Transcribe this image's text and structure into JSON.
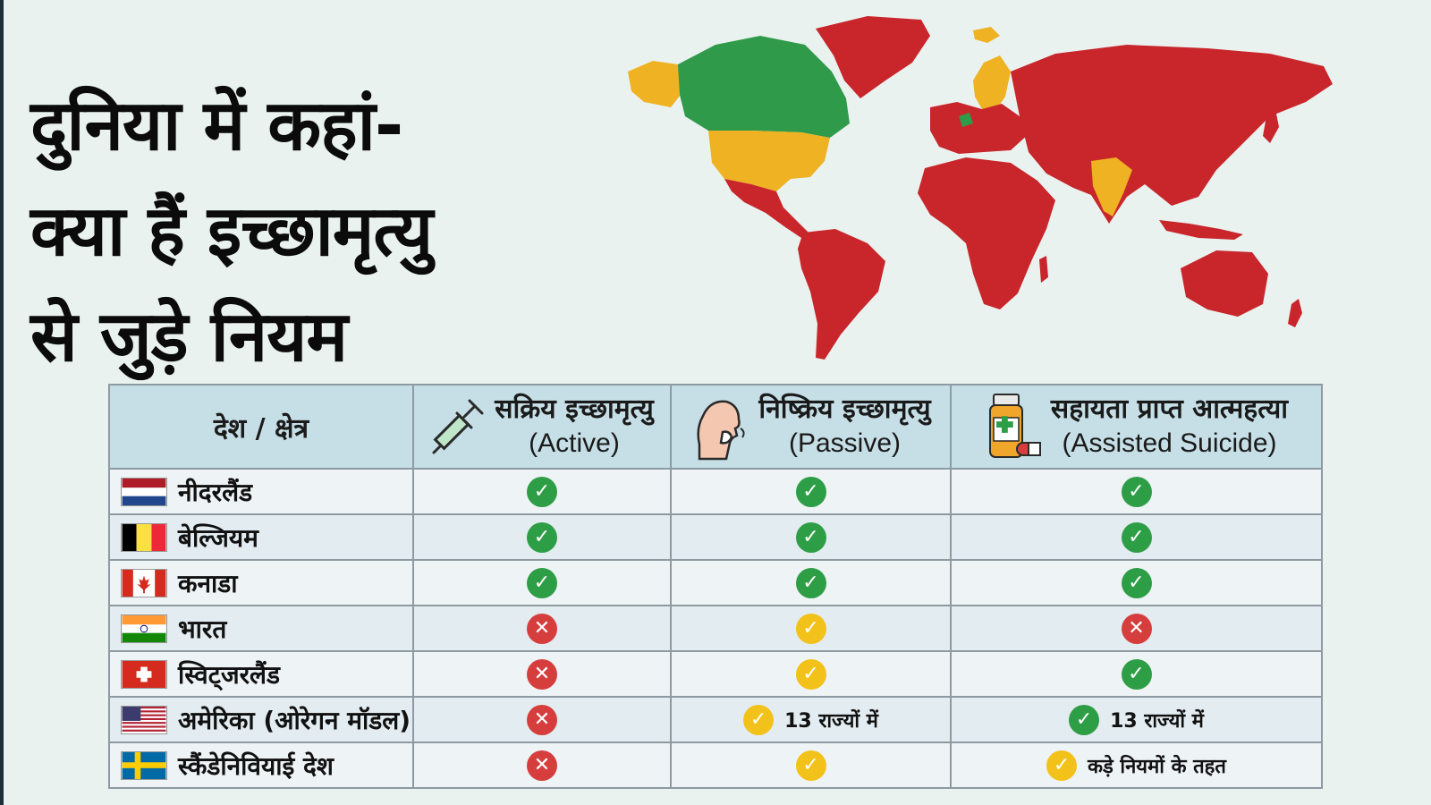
{
  "title_lines": [
    "दुनिया में कहां-",
    "क्या हैं इच्छामृत्यु",
    "से जुड़े नियम"
  ],
  "colors": {
    "green": "#2e9e46",
    "red": "#d63e3e",
    "yellow": "#f2c21a",
    "header_bg": "#c6dfe6"
  },
  "map_legend_meaning": {
    "green": "legal",
    "yellow": "partial",
    "red": "not legal"
  },
  "table": {
    "country_header": "देश / क्षेत्र",
    "columns": [
      {
        "title": "सक्रिय इच्छामृत्यु",
        "subtitle": "(Active)",
        "icon": "syringe-icon"
      },
      {
        "title": "निष्क्रिय इच्छामृत्यु",
        "subtitle": "(Passive)",
        "icon": "person-breathing-icon"
      },
      {
        "title": "सहायता प्राप्त आत्महत्या",
        "subtitle": "(Assisted Suicide)",
        "icon": "medicine-bottle-icon"
      }
    ],
    "rows": [
      {
        "country": "नीदरलैंड",
        "flag": "netherlands",
        "cells": [
          {
            "status": "yes"
          },
          {
            "status": "yes"
          },
          {
            "status": "yes"
          }
        ]
      },
      {
        "country": "बेल्जियम",
        "flag": "belgium",
        "cells": [
          {
            "status": "yes"
          },
          {
            "status": "yes"
          },
          {
            "status": "yes"
          }
        ]
      },
      {
        "country": "कनाडा",
        "flag": "canada",
        "cells": [
          {
            "status": "yes"
          },
          {
            "status": "yes"
          },
          {
            "status": "yes"
          }
        ]
      },
      {
        "country": "भारत",
        "flag": "india",
        "cells": [
          {
            "status": "no"
          },
          {
            "status": "partial"
          },
          {
            "status": "no"
          }
        ]
      },
      {
        "country": "स्विट्जरलैंड",
        "flag": "switzerland",
        "cells": [
          {
            "status": "no"
          },
          {
            "status": "partial"
          },
          {
            "status": "yes"
          }
        ]
      },
      {
        "country": "अमेरिका (ओरेगन मॉडल)",
        "flag": "usa",
        "cells": [
          {
            "status": "no"
          },
          {
            "status": "partial",
            "note": "13 राज्यों में"
          },
          {
            "status": "yes",
            "note": "13 राज्यों में"
          }
        ]
      },
      {
        "country": "स्कैंडेनिवियाई देश",
        "flag": "sweden",
        "cells": [
          {
            "status": "no"
          },
          {
            "status": "partial"
          },
          {
            "status": "partial",
            "note": "कड़े नियमों के तहत"
          }
        ]
      }
    ]
  }
}
